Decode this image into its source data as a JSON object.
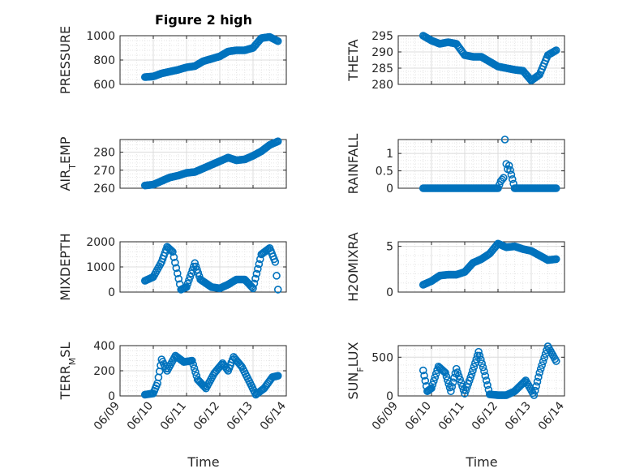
{
  "figure": {
    "title": "Figure 2 high",
    "xlabel": "Time",
    "x_tick_labels": [
      "06/09",
      "06/10",
      "06/11",
      "06/12",
      "06/13",
      "06/14"
    ],
    "marker_color": "#0072BD",
    "grid": true,
    "minor_grid": true
  },
  "chart_data": [
    {
      "type": "scatter",
      "marker": "open-circle",
      "title": "Figure 2 high",
      "ylabel": "PRESSURE",
      "ylim": [
        600,
        1000
      ],
      "yticks": [
        600,
        800,
        1000
      ],
      "xlim": [
        "06/09",
        "06/14"
      ],
      "x": [
        "06/09 18:00",
        "06/10 00:00",
        "06/10 06:00",
        "06/10 12:00",
        "06/10 18:00",
        "06/11 00:00",
        "06/11 06:00",
        "06/11 12:00",
        "06/11 18:00",
        "06/12 00:00",
        "06/12 06:00",
        "06/12 12:00",
        "06/12 18:00",
        "06/13 00:00",
        "06/13 06:00",
        "06/13 12:00",
        "06/13 18:00"
      ],
      "y": [
        660,
        665,
        690,
        705,
        720,
        740,
        750,
        790,
        810,
        830,
        870,
        880,
        880,
        900,
        980,
        990,
        955
      ]
    },
    {
      "type": "scatter",
      "marker": "open-circle",
      "ylabel": "THETA",
      "ylim": [
        280,
        295
      ],
      "yticks": [
        280,
        285,
        290,
        295
      ],
      "xlim": [
        "06/09",
        "06/14"
      ],
      "x": [
        "06/09 18:00",
        "06/10 00:00",
        "06/10 06:00",
        "06/10 12:00",
        "06/10 18:00",
        "06/11 00:00",
        "06/11 06:00",
        "06/11 12:00",
        "06/11 18:00",
        "06/12 00:00",
        "06/12 06:00",
        "06/12 12:00",
        "06/12 18:00",
        "06/13 00:00",
        "06/13 06:00",
        "06/13 12:00",
        "06/13 18:00"
      ],
      "y": [
        295,
        293.5,
        292.5,
        293,
        292.5,
        289,
        288.5,
        288.5,
        287,
        285.5,
        285,
        284.5,
        284.2,
        281.2,
        283,
        289,
        290.5
      ]
    },
    {
      "type": "scatter",
      "marker": "open-circle",
      "ylabel": "AIR_TEMP",
      "ylim": [
        260,
        287
      ],
      "yticks": [
        260,
        270,
        280
      ],
      "xlim": [
        "06/09",
        "06/14"
      ],
      "x": [
        "06/09 18:00",
        "06/10 00:00",
        "06/10 06:00",
        "06/10 12:00",
        "06/10 18:00",
        "06/11 00:00",
        "06/11 06:00",
        "06/11 12:00",
        "06/11 18:00",
        "06/12 00:00",
        "06/12 06:00",
        "06/12 12:00",
        "06/12 18:00",
        "06/13 00:00",
        "06/13 06:00",
        "06/13 12:00",
        "06/13 18:00"
      ],
      "y": [
        261.5,
        262,
        264,
        266,
        267,
        268.5,
        269,
        271,
        273,
        275,
        277,
        275.5,
        276,
        278,
        280.5,
        284,
        286
      ]
    },
    {
      "type": "scatter",
      "marker": "open-circle",
      "ylabel": "RAINFALL",
      "ylim": [
        0,
        1.4
      ],
      "yticks": [
        0,
        0.5,
        1
      ],
      "xlim": [
        "06/09",
        "06/14"
      ],
      "x": [
        "06/09 18:00",
        "06/10 00:00",
        "06/10 12:00",
        "06/11 00:00",
        "06/11 12:00",
        "06/12 00:00",
        "06/12 02:00",
        "06/12 04:00",
        "06/12 05:00",
        "06/12 06:00",
        "06/12 07:00",
        "06/12 08:00",
        "06/12 12:00",
        "06/13 00:00",
        "06/13 12:00",
        "06/13 18:00"
      ],
      "y": [
        0,
        0,
        0,
        0,
        0,
        0,
        0.2,
        0.3,
        1.4,
        0.7,
        0.55,
        0.65,
        0,
        0,
        0,
        0
      ]
    },
    {
      "type": "scatter",
      "marker": "open-circle",
      "ylabel": "MIXDEPTH",
      "ylim": [
        0,
        2000
      ],
      "yticks": [
        0,
        1000,
        2000
      ],
      "xlim": [
        "06/09",
        "06/14"
      ],
      "x": [
        "06/09 18:00",
        "06/10 00:00",
        "06/10 06:00",
        "06/10 10:00",
        "06/10 14:00",
        "06/10 20:00",
        "06/11 00:00",
        "06/11 06:00",
        "06/11 10:00",
        "06/11 18:00",
        "06/12 00:00",
        "06/12 06:00",
        "06/12 12:00",
        "06/12 18:00",
        "06/13 00:00",
        "06/13 06:00",
        "06/13 12:00",
        "06/13 16:00",
        "06/13 18:00"
      ],
      "y": [
        450,
        600,
        1200,
        1800,
        1600,
        100,
        200,
        1150,
        500,
        200,
        150,
        300,
        500,
        500,
        150,
        1500,
        1750,
        1200,
        100
      ]
    },
    {
      "type": "scatter",
      "marker": "open-circle",
      "ylabel": "H2OMIXRA",
      "ylim": [
        0,
        5.5
      ],
      "yticks": [
        0,
        5
      ],
      "xlim": [
        "06/09",
        "06/14"
      ],
      "x": [
        "06/09 18:00",
        "06/10 00:00",
        "06/10 06:00",
        "06/10 12:00",
        "06/10 18:00",
        "06/11 00:00",
        "06/11 06:00",
        "06/11 12:00",
        "06/11 18:00",
        "06/12 00:00",
        "06/12 06:00",
        "06/12 12:00",
        "06/12 18:00",
        "06/13 00:00",
        "06/13 06:00",
        "06/13 12:00",
        "06/13 18:00"
      ],
      "y": [
        0.8,
        1.2,
        1.8,
        1.9,
        1.9,
        2.2,
        3.2,
        3.6,
        4.2,
        5.3,
        4.9,
        5,
        4.7,
        4.5,
        4,
        3.5,
        3.6
      ]
    },
    {
      "type": "scatter",
      "marker": "open-circle",
      "ylabel": "TERR_MSL",
      "ylim": [
        0,
        400
      ],
      "yticks": [
        0,
        200,
        400
      ],
      "xlim": [
        "06/09",
        "06/14"
      ],
      "x": [
        "06/09 18:00",
        "06/10 00:00",
        "06/10 03:00",
        "06/10 06:00",
        "06/10 10:00",
        "06/10 16:00",
        "06/10 22:00",
        "06/11 04:00",
        "06/11 08:00",
        "06/11 14:00",
        "06/11 20:00",
        "06/12 02:00",
        "06/12 06:00",
        "06/12 10:00",
        "06/12 16:00",
        "06/12 22:00",
        "06/13 02:00",
        "06/13 08:00",
        "06/13 14:00",
        "06/13 18:00"
      ],
      "y": [
        10,
        20,
        100,
        290,
        200,
        320,
        270,
        280,
        130,
        60,
        180,
        260,
        200,
        310,
        230,
        100,
        10,
        60,
        150,
        160
      ]
    },
    {
      "type": "scatter",
      "marker": "open-circle",
      "ylabel": "SUN_FLUX",
      "ylim": [
        0,
        650
      ],
      "yticks": [
        0,
        500
      ],
      "xlim": [
        "06/09",
        "06/14"
      ],
      "x": [
        "06/09 18:00",
        "06/09 21:00",
        "06/10 00:00",
        "06/10 05:00",
        "06/10 10:00",
        "06/10 14:00",
        "06/10 18:00",
        "06/11 00:00",
        "06/11 05:00",
        "06/11 10:00",
        "06/11 14:00",
        "06/11 18:00",
        "06/12 00:00",
        "06/12 06:00",
        "06/12 12:00",
        "06/12 20:00",
        "06/13 02:00",
        "06/13 06:00",
        "06/13 12:00",
        "06/13 18:00"
      ],
      "y": [
        330,
        60,
        100,
        380,
        300,
        60,
        350,
        30,
        280,
        570,
        320,
        20,
        10,
        10,
        60,
        200,
        10,
        300,
        640,
        450
      ]
    }
  ]
}
